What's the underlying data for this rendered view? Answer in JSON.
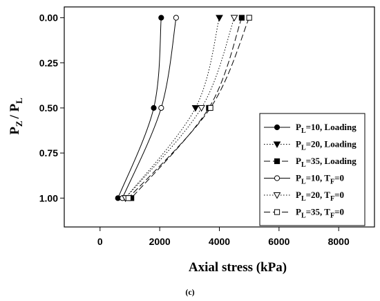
{
  "chart_data": {
    "type": "line",
    "xlabel": "Axial stress (kPa)",
    "ylabel_main": "P",
    "ylabel_sub1": "Z",
    "ylabel_sep": "/ P",
    "ylabel_sub2": "L",
    "xlim": [
      -1200,
      9200
    ],
    "ylim": [
      1.16,
      -0.06
    ],
    "x_ticks": [
      0,
      2000,
      4000,
      6000,
      8000
    ],
    "x_tick_labels": [
      "0",
      "2000",
      "4000",
      "6000",
      "8000"
    ],
    "y_ticks": [
      0.0,
      0.25,
      0.5,
      0.75,
      1.0
    ],
    "y_tick_labels": [
      "0.00",
      "0.25",
      "0.50",
      "0.75",
      "1.00"
    ],
    "grid": false,
    "legend_position": "right",
    "series": [
      {
        "name_pre": "P",
        "name_sub": "L",
        "name_mid": "=10, Loading",
        "name_sub2": "",
        "name_post": "",
        "marker": "circle-filled",
        "dash": "solid",
        "points": [
          [
            2050,
            0.0
          ],
          [
            1800,
            0.5
          ],
          [
            600,
            1.0
          ]
        ]
      },
      {
        "name_pre": "P",
        "name_sub": "L",
        "name_mid": "=20, Loading",
        "name_sub2": "",
        "name_post": "",
        "marker": "triangle-filled",
        "dash": "dotted",
        "points": [
          [
            4000,
            0.0
          ],
          [
            3200,
            0.5
          ],
          [
            850,
            1.0
          ]
        ]
      },
      {
        "name_pre": "P",
        "name_sub": "L",
        "name_mid": "=35, Loading",
        "name_sub2": "",
        "name_post": "",
        "marker": "square-filled",
        "dash": "dashed",
        "points": [
          [
            4750,
            0.0
          ],
          [
            3650,
            0.5
          ],
          [
            1050,
            1.0
          ]
        ]
      },
      {
        "name_pre": "P",
        "name_sub": "L",
        "name_mid": "=10, T",
        "name_sub2": "F",
        "name_post": "=0",
        "marker": "circle-open",
        "dash": "solid",
        "points": [
          [
            2550,
            0.0
          ],
          [
            2050,
            0.5
          ],
          [
            750,
            1.0
          ]
        ]
      },
      {
        "name_pre": "P",
        "name_sub": "L",
        "name_mid": "=20, T",
        "name_sub2": "F",
        "name_post": "=0",
        "marker": "triangle-open",
        "dash": "dotted",
        "points": [
          [
            4500,
            0.0
          ],
          [
            3400,
            0.5
          ],
          [
            850,
            1.0
          ]
        ]
      },
      {
        "name_pre": "P",
        "name_sub": "L",
        "name_mid": "=35, T",
        "name_sub2": "F",
        "name_post": "=0",
        "marker": "square-open",
        "dash": "dashed",
        "points": [
          [
            5000,
            0.0
          ],
          [
            3700,
            0.5
          ],
          [
            950,
            1.0
          ]
        ]
      }
    ]
  },
  "caption": "(c)"
}
